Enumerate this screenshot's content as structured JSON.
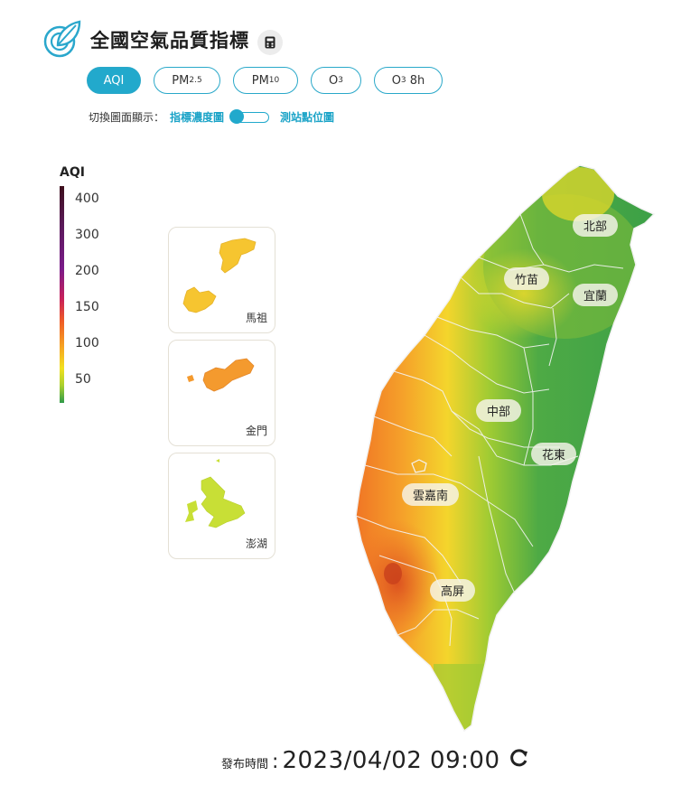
{
  "header": {
    "title": "全國空氣品質指標"
  },
  "tabs": [
    {
      "label": "AQI",
      "sub": "",
      "active": true
    },
    {
      "label": "PM",
      "sub": "2.5",
      "active": false
    },
    {
      "label": "PM",
      "sub": "10",
      "active": false
    },
    {
      "label": "O",
      "sub": "3",
      "active": false
    },
    {
      "label": "O",
      "sub": "3",
      "suffix": " 8h",
      "active": false
    }
  ],
  "display_switch": {
    "label": "切換圖面顯示：",
    "option_left": "指標濃度圖",
    "option_right": "測站點位圖",
    "selected": "指標濃度圖"
  },
  "legend": {
    "title": "AQI",
    "ticks": [
      "400",
      "300",
      "200",
      "150",
      "100",
      "50"
    ]
  },
  "insets": [
    {
      "name": "馬祖",
      "color": "#f6c530"
    },
    {
      "name": "金門",
      "color": "#f49a2e"
    },
    {
      "name": "澎湖",
      "color": "#c8df36"
    }
  ],
  "regions": [
    "北部",
    "竹苗",
    "宜蘭",
    "中部",
    "花東",
    "雲嘉南",
    "高屏"
  ],
  "footer": {
    "label": "發布時間",
    "separator": ":",
    "timestamp": "2023/04/02 09:00"
  },
  "icons": {
    "logo": "leaf-logo-icon",
    "calculator": "calculator-icon",
    "refresh": "refresh-icon"
  }
}
